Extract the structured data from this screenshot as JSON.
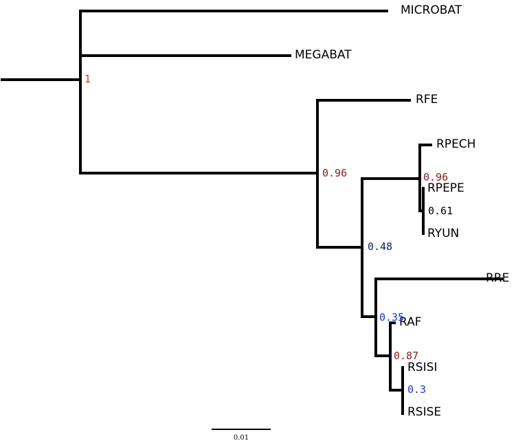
{
  "taxa": {
    "microbat": "MICROBAT",
    "megabat": "MEGABAT",
    "rfe": "RFE",
    "rpech": "RPECH",
    "rpepe": "RPEPE",
    "ryun": "RYUN",
    "rre": "RRE",
    "raf": "RAF",
    "rsisi": "RSISI",
    "rsise": "RSISE"
  },
  "support": {
    "root": "1",
    "node_rfe": "0.96",
    "node_rpech": "0.96",
    "node_rpepe_ryun": "0.61",
    "node_main": "0.48",
    "node_rre": "0.35",
    "node_raf": "0.87",
    "node_rsi": "0.3"
  },
  "colors": {
    "red": "#e8262a",
    "dark_red": "#8b1a1a",
    "dark_blue": "#0f1f5c",
    "blue": "#2233cc",
    "black": "#000000"
  },
  "scale_bar": {
    "label": "0.01"
  }
}
